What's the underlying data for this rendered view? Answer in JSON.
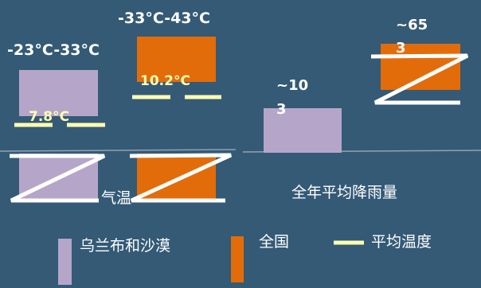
{
  "chart_data": [
    {
      "type": "bar",
      "xlabel": "气温",
      "categories": [
        "乌兰布和沙漠",
        "全国"
      ],
      "series": [
        {
          "name": "平均温度",
          "values": [
            7.8,
            10.2
          ],
          "value_labels": [
            "7.8°C",
            "10.2°C"
          ]
        }
      ],
      "range_labels": [
        "-23°C-33°C",
        "-33°C-43°C"
      ],
      "axis_break": true
    },
    {
      "type": "bar",
      "xlabel": "全年平均降雨量",
      "categories": [
        "乌兰布和沙漠",
        "全国"
      ],
      "series": [
        {
          "name": "全年平均降雨量",
          "values": [
            103,
            653
          ],
          "value_labels": [
            "~103",
            "~653"
          ]
        }
      ],
      "axis_break": true
    }
  ],
  "legend": {
    "items": [
      {
        "label": "乌兰布和沙漠",
        "color": "#b5a6c9",
        "shape": "bar"
      },
      {
        "label": "全国",
        "color": "#e36c0a",
        "shape": "bar"
      },
      {
        "label": "平均温度",
        "color": "#ffffb3",
        "shape": "line"
      }
    ],
    "placement": "bottom"
  },
  "colors": {
    "background": "#345a75",
    "desert": "#b5a6c9",
    "national": "#e36c0a",
    "avg_line": "#ffffb3",
    "text": "#ffffff",
    "axis": "#8fa3b3"
  }
}
